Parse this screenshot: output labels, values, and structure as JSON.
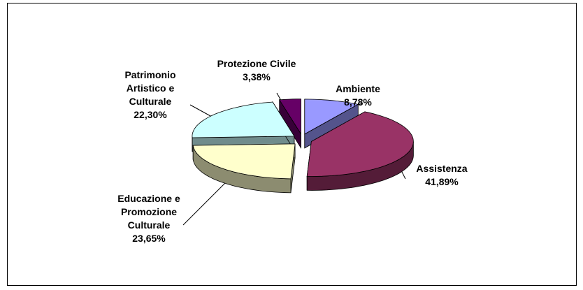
{
  "chart_data": {
    "type": "pie",
    "categories": [
      "Ambiente",
      "Assistenza",
      "Educazione e Promozione Culturale",
      "Patrimonio Artistico e Culturale",
      "Protezione Civile"
    ],
    "values": [
      8.78,
      41.89,
      23.65,
      22.3,
      3.38
    ],
    "value_labels": [
      "8,78%",
      "41,89%",
      "23,65%",
      "22,30%",
      "3,38%"
    ],
    "colors": [
      "#9999ff",
      "#993366",
      "#ffffcc",
      "#ccffff",
      "#660066"
    ]
  }
}
